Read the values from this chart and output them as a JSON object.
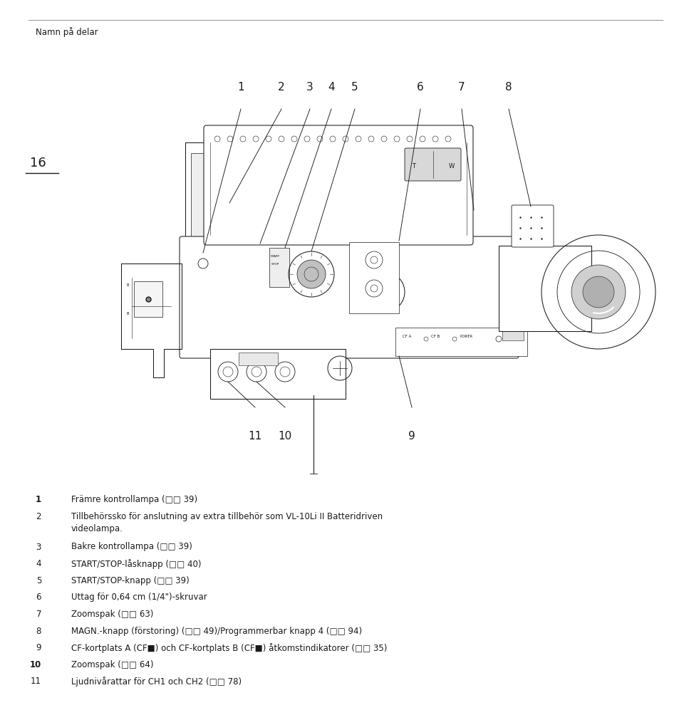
{
  "background_color": "#ffffff",
  "page_title": "Namn på delar",
  "page_number": "16",
  "body_font_size": 8.5,
  "items": [
    {
      "num": "1",
      "bold": true,
      "text": "Främre kontrollampa (□□ 39)"
    },
    {
      "num": "2",
      "bold": false,
      "text": "Tillbehörssko för anslutning av extra tillbehör som VL-10Li II Batteridriven\nvideolampa."
    },
    {
      "num": "3",
      "bold": false,
      "text": "Bakre kontrollampa (□□ 39)"
    },
    {
      "num": "4",
      "bold": false,
      "text": "START/STOP-låsknapp (□□ 40)"
    },
    {
      "num": "5",
      "bold": false,
      "text": "START/STOP-knapp (□□ 39)"
    },
    {
      "num": "6",
      "bold": false,
      "text": "Uttag för 0,64 cm (1/4\")-skruvar"
    },
    {
      "num": "7",
      "bold": false,
      "text": "Zoomspak (□□ 63)"
    },
    {
      "num": "8",
      "bold": false,
      "text": "MAGN.-knapp (förstoring) (□□ 49)/Programmerbar knapp 4 (□□ 94)"
    },
    {
      "num": "9",
      "bold": false,
      "text": "CF-kortplats A (CF■) och CF-kortplats B (CF■) åtkomstindikatorer (□□ 35)"
    },
    {
      "num": "10",
      "bold": true,
      "text": "Zoomspak (□□ 64)"
    },
    {
      "num": "11",
      "bold": false,
      "text": "Ljudnivårattar för CH1 och CH2 (□□ 78)"
    }
  ]
}
